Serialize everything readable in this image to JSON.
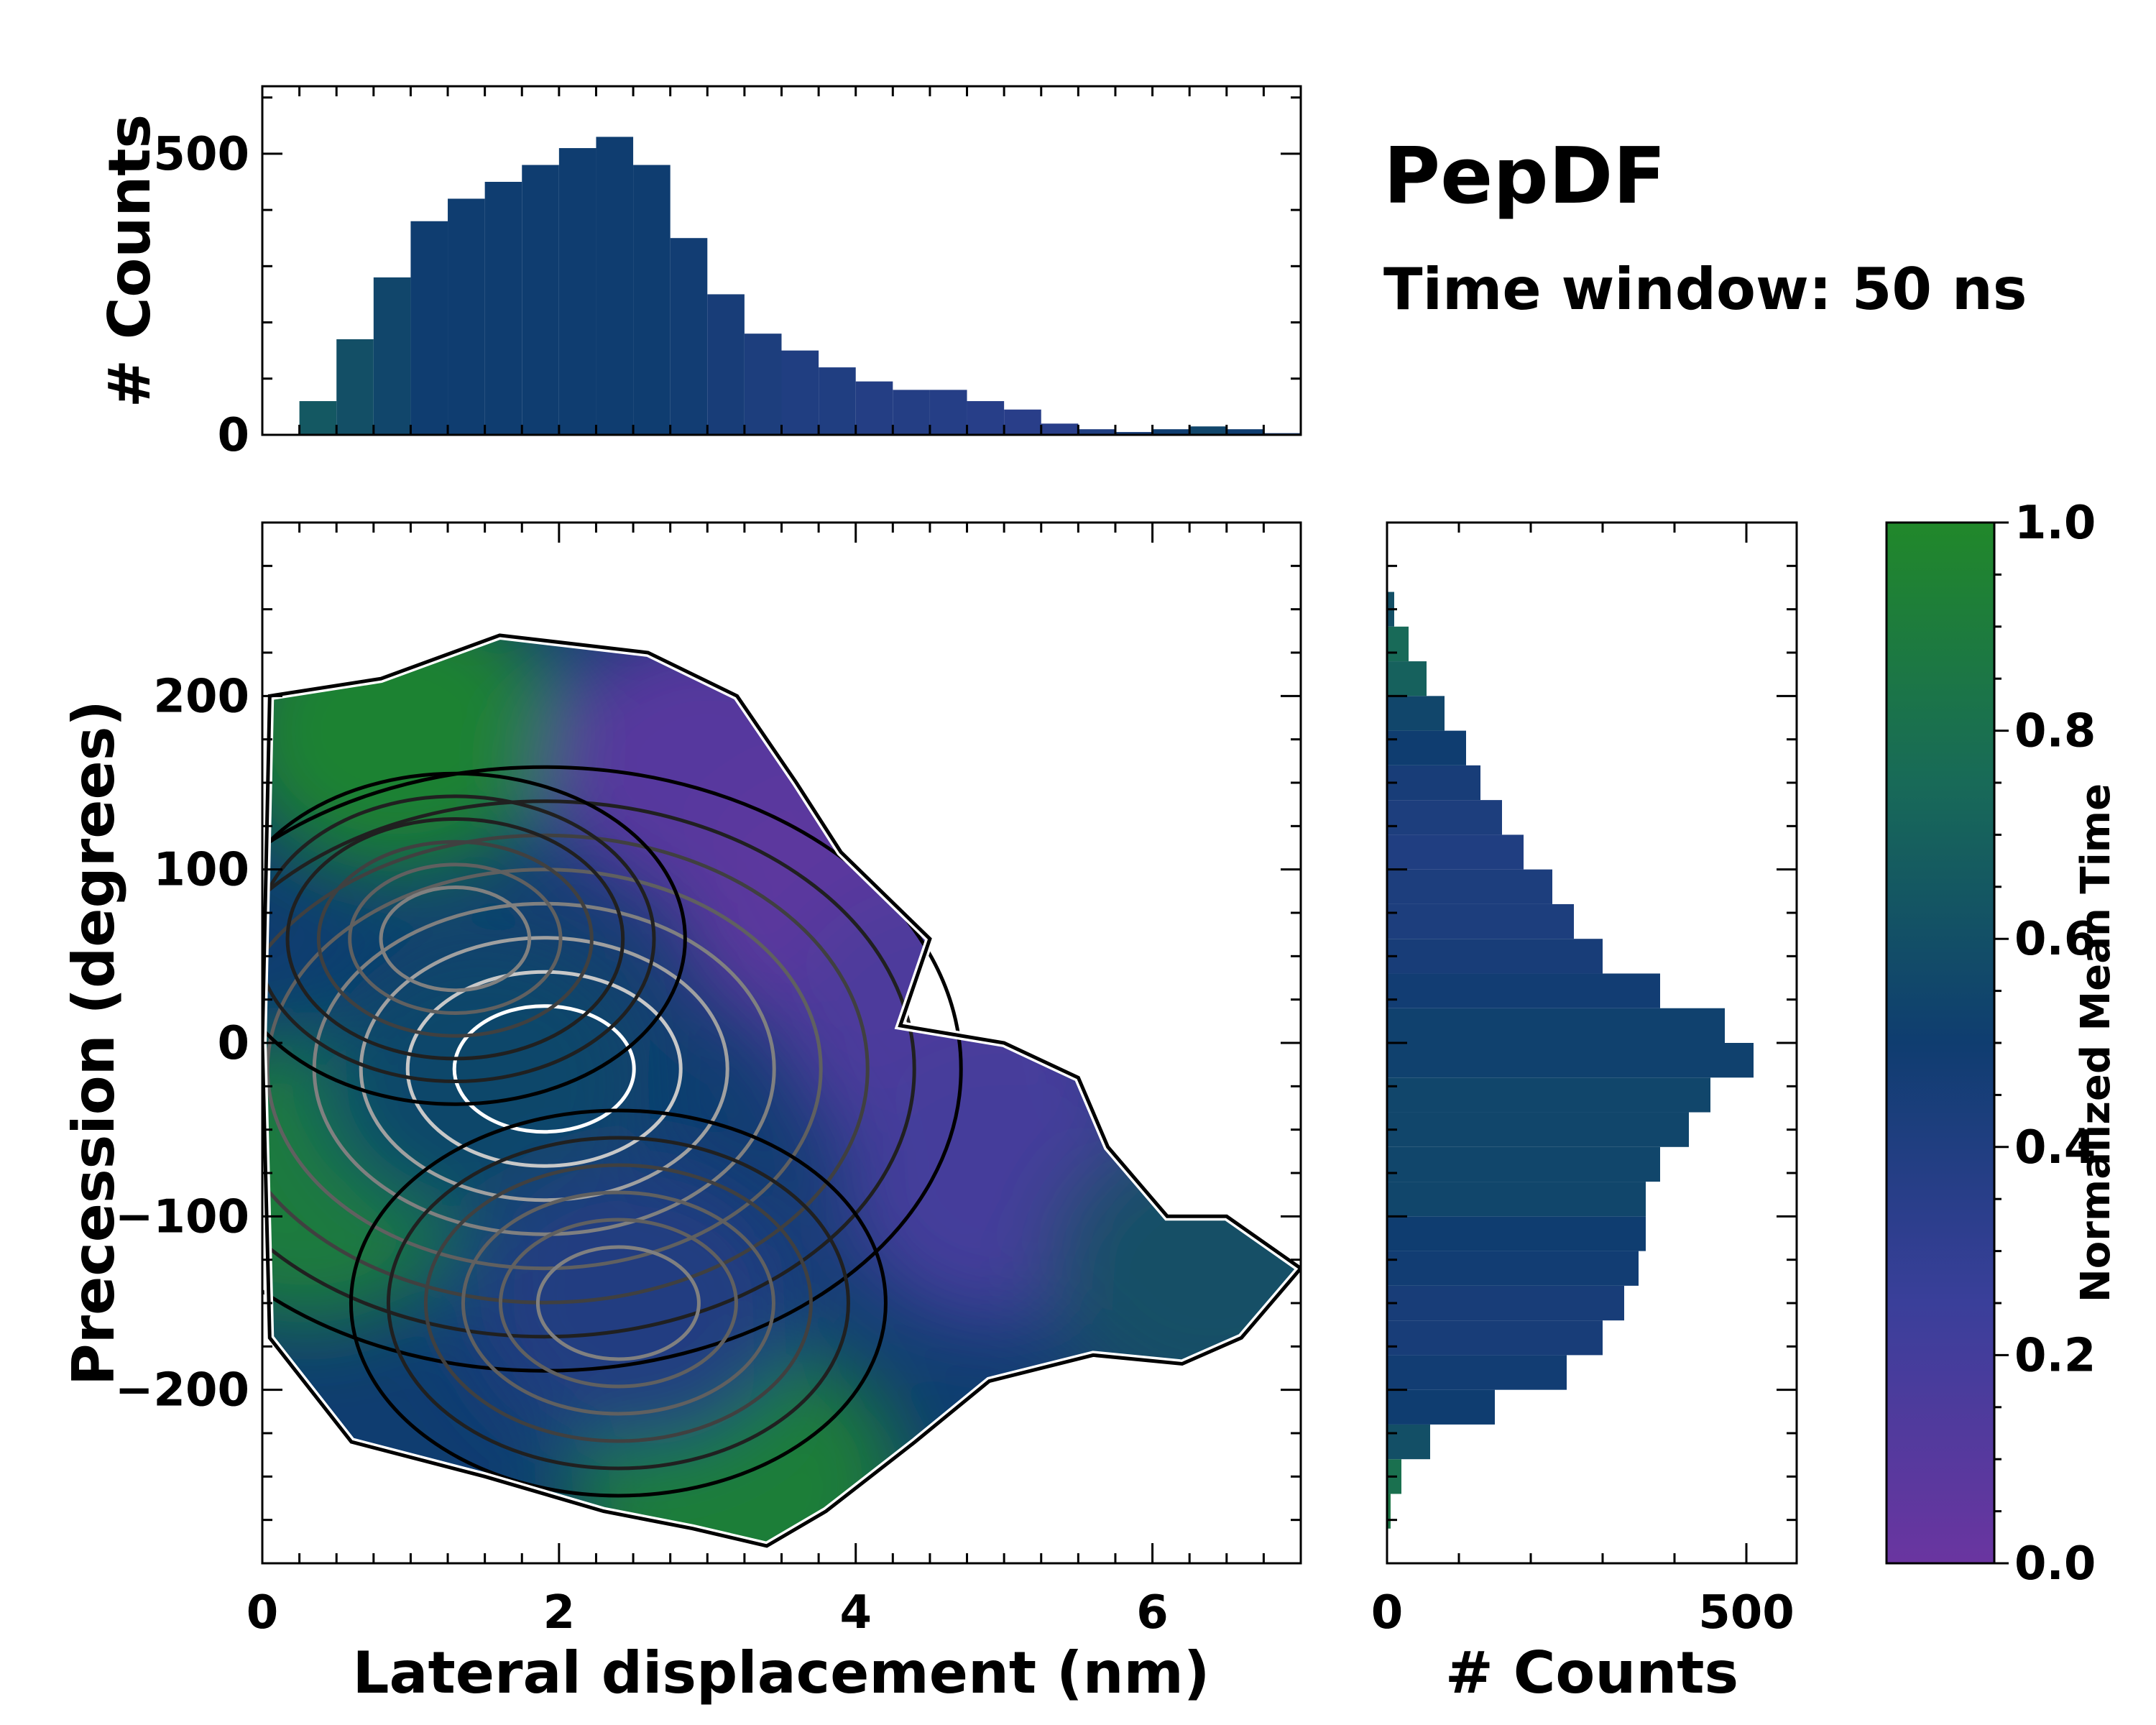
{
  "figure": {
    "title": "PepDF",
    "subtitle": "Time window: 50 ns"
  },
  "colors": {
    "low": "#6a35a0",
    "mid": "#0f3d70",
    "high": "#21882a",
    "contour_outer": "#000000",
    "contour_inner": "#ffffff"
  },
  "chart_data": [
    {
      "id": "main",
      "type": "heatmap",
      "xlabel": "Lateral displacement (nm)",
      "ylabel": "Precession (degrees)",
      "xlim": [
        0,
        7
      ],
      "ylim": [
        -300,
        300
      ],
      "xticks": [
        0,
        2,
        4,
        6
      ],
      "xtick_labels": [
        "0",
        "2",
        "4",
        "6"
      ],
      "yticks": [
        -200,
        -100,
        0,
        100,
        200
      ],
      "ytick_labels": [
        "−200",
        "−100",
        "0",
        "100",
        "200"
      ],
      "color_metric": "Normalized Mean Time",
      "density_peaks": [
        {
          "x": 1.9,
          "y": -15,
          "weight": 1.0
        },
        {
          "x": 2.4,
          "y": -150,
          "weight": 0.6
        },
        {
          "x": 1.3,
          "y": 60,
          "weight": 0.5
        }
      ],
      "support_outline": [
        [
          0.05,
          200
        ],
        [
          0.8,
          210
        ],
        [
          1.6,
          235
        ],
        [
          2.6,
          225
        ],
        [
          3.2,
          200
        ],
        [
          3.6,
          150
        ],
        [
          3.9,
          110
        ],
        [
          4.5,
          60
        ],
        [
          4.3,
          10
        ],
        [
          5.0,
          0
        ],
        [
          5.5,
          -20
        ],
        [
          5.7,
          -60
        ],
        [
          6.1,
          -100
        ],
        [
          6.5,
          -100
        ],
        [
          7.0,
          -130
        ],
        [
          6.6,
          -170
        ],
        [
          6.2,
          -185
        ],
        [
          5.6,
          -180
        ],
        [
          4.9,
          -195
        ],
        [
          4.4,
          -230
        ],
        [
          3.8,
          -270
        ],
        [
          3.4,
          -290
        ],
        [
          2.9,
          -280
        ],
        [
          2.3,
          -270
        ],
        [
          1.5,
          -250
        ],
        [
          0.6,
          -230
        ],
        [
          0.05,
          -170
        ],
        [
          0.0,
          0
        ]
      ],
      "color_regions": [
        {
          "x": 0.9,
          "y": 180,
          "mean_time": 0.95
        },
        {
          "x": 3.2,
          "y": -255,
          "mean_time": 0.92
        },
        {
          "x": 0.3,
          "y": -80,
          "mean_time": 0.9
        },
        {
          "x": 3.0,
          "y": 160,
          "mean_time": 0.1
        },
        {
          "x": 3.9,
          "y": 80,
          "mean_time": 0.08
        },
        {
          "x": 4.6,
          "y": 10,
          "mean_time": 0.15
        },
        {
          "x": 5.0,
          "y": -80,
          "mean_time": 0.2
        },
        {
          "x": 6.4,
          "y": -130,
          "mean_time": 0.6
        },
        {
          "x": 1.5,
          "y": -20,
          "mean_time": 0.55
        },
        {
          "x": 2.5,
          "y": -150,
          "mean_time": 0.4
        }
      ]
    },
    {
      "id": "top-hist",
      "type": "bar",
      "ylabel": "# Counts",
      "xlim": [
        0,
        7
      ],
      "ylim": [
        0,
        620
      ],
      "yticks": [
        0,
        500
      ],
      "ytick_labels": [
        "0",
        "500"
      ],
      "x": [
        0.0,
        0.25,
        0.5,
        0.75,
        1.0,
        1.25,
        1.5,
        1.75,
        2.0,
        2.25,
        2.5,
        2.75,
        3.0,
        3.25,
        3.5,
        3.75,
        4.0,
        4.25,
        4.5,
        4.75,
        5.0,
        5.25,
        5.5,
        5.75,
        6.0,
        6.25,
        6.5,
        6.75,
        7.0
      ],
      "values": [
        0,
        60,
        170,
        280,
        380,
        420,
        450,
        480,
        510,
        530,
        480,
        350,
        250,
        180,
        150,
        120,
        95,
        80,
        80,
        60,
        45,
        20,
        10,
        5,
        10,
        15,
        10,
        3,
        0
      ],
      "mean_time": [
        0.7,
        0.65,
        0.6,
        0.55,
        0.5,
        0.5,
        0.5,
        0.5,
        0.5,
        0.5,
        0.5,
        0.48,
        0.45,
        0.42,
        0.4,
        0.4,
        0.38,
        0.38,
        0.37,
        0.36,
        0.35,
        0.35,
        0.4,
        0.45,
        0.5,
        0.55,
        0.5,
        0.45,
        0.4
      ]
    },
    {
      "id": "right-hist",
      "type": "bar",
      "orientation": "horizontal",
      "xlabel": "# Counts",
      "xlim": [
        0,
        570
      ],
      "ylim": [
        -300,
        300
      ],
      "xticks": [
        0,
        500
      ],
      "xtick_labels": [
        "0",
        "500"
      ],
      "y": [
        -280,
        -260,
        -240,
        -220,
        -200,
        -180,
        -160,
        -140,
        -120,
        -100,
        -80,
        -60,
        -40,
        -20,
        0,
        20,
        40,
        60,
        80,
        100,
        120,
        140,
        160,
        180,
        200,
        220,
        240
      ],
      "values": [
        5,
        20,
        60,
        150,
        250,
        300,
        330,
        350,
        360,
        360,
        380,
        420,
        450,
        510,
        470,
        380,
        300,
        260,
        230,
        190,
        160,
        130,
        110,
        80,
        55,
        30,
        10
      ],
      "mean_time": [
        0.85,
        0.8,
        0.6,
        0.5,
        0.48,
        0.45,
        0.45,
        0.48,
        0.5,
        0.55,
        0.55,
        0.55,
        0.55,
        0.52,
        0.52,
        0.48,
        0.45,
        0.42,
        0.42,
        0.4,
        0.42,
        0.45,
        0.5,
        0.55,
        0.7,
        0.75,
        0.6
      ]
    },
    {
      "id": "colorbar",
      "type": "colorbar",
      "label": "Normalized Mean Time",
      "range": [
        0,
        1
      ],
      "ticks": [
        0.0,
        0.2,
        0.4,
        0.6,
        0.8,
        1.0
      ],
      "tick_labels": [
        "0.0",
        "0.2",
        "0.4",
        "0.6",
        "0.8",
        "1.0"
      ]
    }
  ]
}
